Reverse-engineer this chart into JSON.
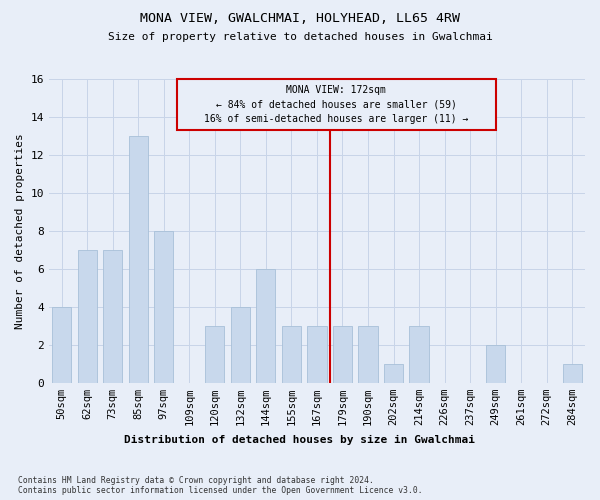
{
  "title": "MONA VIEW, GWALCHMAI, HOLYHEAD, LL65 4RW",
  "subtitle": "Size of property relative to detached houses in Gwalchmai",
  "xlabel": "Distribution of detached houses by size in Gwalchmai",
  "ylabel": "Number of detached properties",
  "bar_labels": [
    "50sqm",
    "62sqm",
    "73sqm",
    "85sqm",
    "97sqm",
    "109sqm",
    "120sqm",
    "132sqm",
    "144sqm",
    "155sqm",
    "167sqm",
    "179sqm",
    "190sqm",
    "202sqm",
    "214sqm",
    "226sqm",
    "237sqm",
    "249sqm",
    "261sqm",
    "272sqm",
    "284sqm"
  ],
  "bar_values": [
    4,
    7,
    7,
    13,
    8,
    0,
    3,
    4,
    6,
    3,
    3,
    3,
    3,
    1,
    3,
    0,
    0,
    2,
    0,
    0,
    1
  ],
  "bar_color": "#c8d8ec",
  "bar_edgecolor": "#a8c0d8",
  "bar_width": 0.75,
  "ylim": [
    0,
    16
  ],
  "yticks": [
    0,
    2,
    4,
    6,
    8,
    10,
    12,
    14,
    16
  ],
  "annotation_text": "MONA VIEW: 172sqm\n← 84% of detached houses are smaller (59)\n16% of semi-detached houses are larger (11) →",
  "vline_x_idx": 10.5,
  "vline_color": "#cc0000",
  "footnote": "Contains HM Land Registry data © Crown copyright and database right 2024.\nContains public sector information licensed under the Open Government Licence v3.0.",
  "grid_color": "#c8d4e8",
  "bg_color": "#e8eef8"
}
